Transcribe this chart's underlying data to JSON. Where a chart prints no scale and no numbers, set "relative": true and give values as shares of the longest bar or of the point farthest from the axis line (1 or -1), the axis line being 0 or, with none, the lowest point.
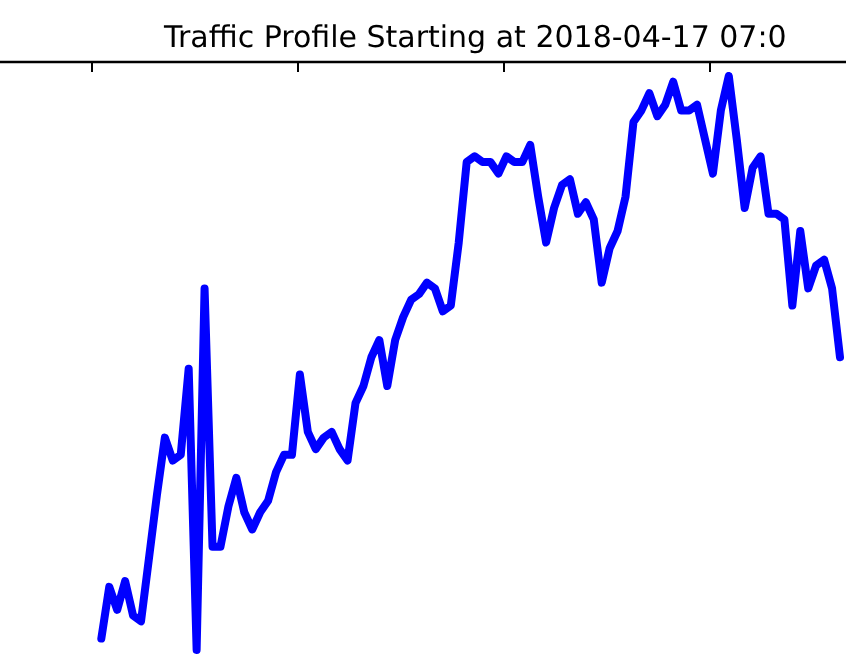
{
  "chart_data": {
    "type": "line",
    "title": "Traffic Profile Starting at 2018-04-17 07:0",
    "relative": true,
    "line_style": "solid",
    "categories": [
      null,
      null,
      null,
      null,
      null,
      null,
      null,
      null,
      null,
      null,
      null,
      null,
      null,
      null,
      null,
      null,
      null,
      null,
      null,
      null,
      null,
      null,
      null,
      null,
      null,
      null,
      null,
      null,
      null,
      null,
      null,
      null,
      null,
      null,
      null,
      null,
      null,
      null,
      null,
      null,
      null,
      null,
      null,
      null,
      null,
      null,
      null,
      null,
      null,
      null,
      null,
      null,
      null,
      null,
      null,
      null,
      null,
      null,
      null,
      null,
      null,
      null,
      null,
      null,
      null,
      null,
      null,
      null,
      null,
      null,
      null,
      null,
      null,
      null,
      null,
      null,
      null,
      null,
      null,
      null,
      null,
      null,
      null,
      null,
      null,
      null,
      null,
      null,
      null,
      null,
      null,
      null,
      null,
      null,
      null,
      null,
      null,
      null,
      null,
      null,
      null,
      null,
      null,
      null,
      null,
      null
    ],
    "series": [
      {
        "color": "#0000ff",
        "values": [
          null,
          null,
          null,
          null,
          null,
          null,
          null,
          null,
          null,
          null,
          null,
          null,
          0.02,
          0.11,
          0.07,
          0.12,
          0.06,
          0.05,
          0.16,
          0.27,
          0.37,
          0.33,
          0.34,
          0.49,
          0,
          0.63,
          0.18,
          0.18,
          0.25,
          0.3,
          0.24,
          0.21,
          0.24,
          0.26,
          0.31,
          0.34,
          0.34,
          0.48,
          0.38,
          0.35,
          0.37,
          0.38,
          0.35,
          0.33,
          0.43,
          0.46,
          0.51,
          0.54,
          0.46,
          0.54,
          0.58,
          0.61,
          0.62,
          0.64,
          0.63,
          0.59,
          0.6,
          0.71,
          0.85,
          0.86,
          0.85,
          0.85,
          0.83,
          0.86,
          0.85,
          0.85,
          0.88,
          0.79,
          0.71,
          0.77,
          0.81,
          0.82,
          0.76,
          0.78,
          0.75,
          0.64,
          0.7,
          0.73,
          0.79,
          0.92,
          0.94,
          0.97,
          0.93,
          0.95,
          0.99,
          0.94,
          0.94,
          0.95,
          0.89,
          0.83,
          0.94,
          1,
          0.89,
          0.77,
          0.84,
          0.86,
          0.76,
          0.76,
          0.75,
          0.6,
          0.73,
          0.63,
          0.67,
          0.68,
          0.63,
          0.51
        ]
      }
    ]
  }
}
